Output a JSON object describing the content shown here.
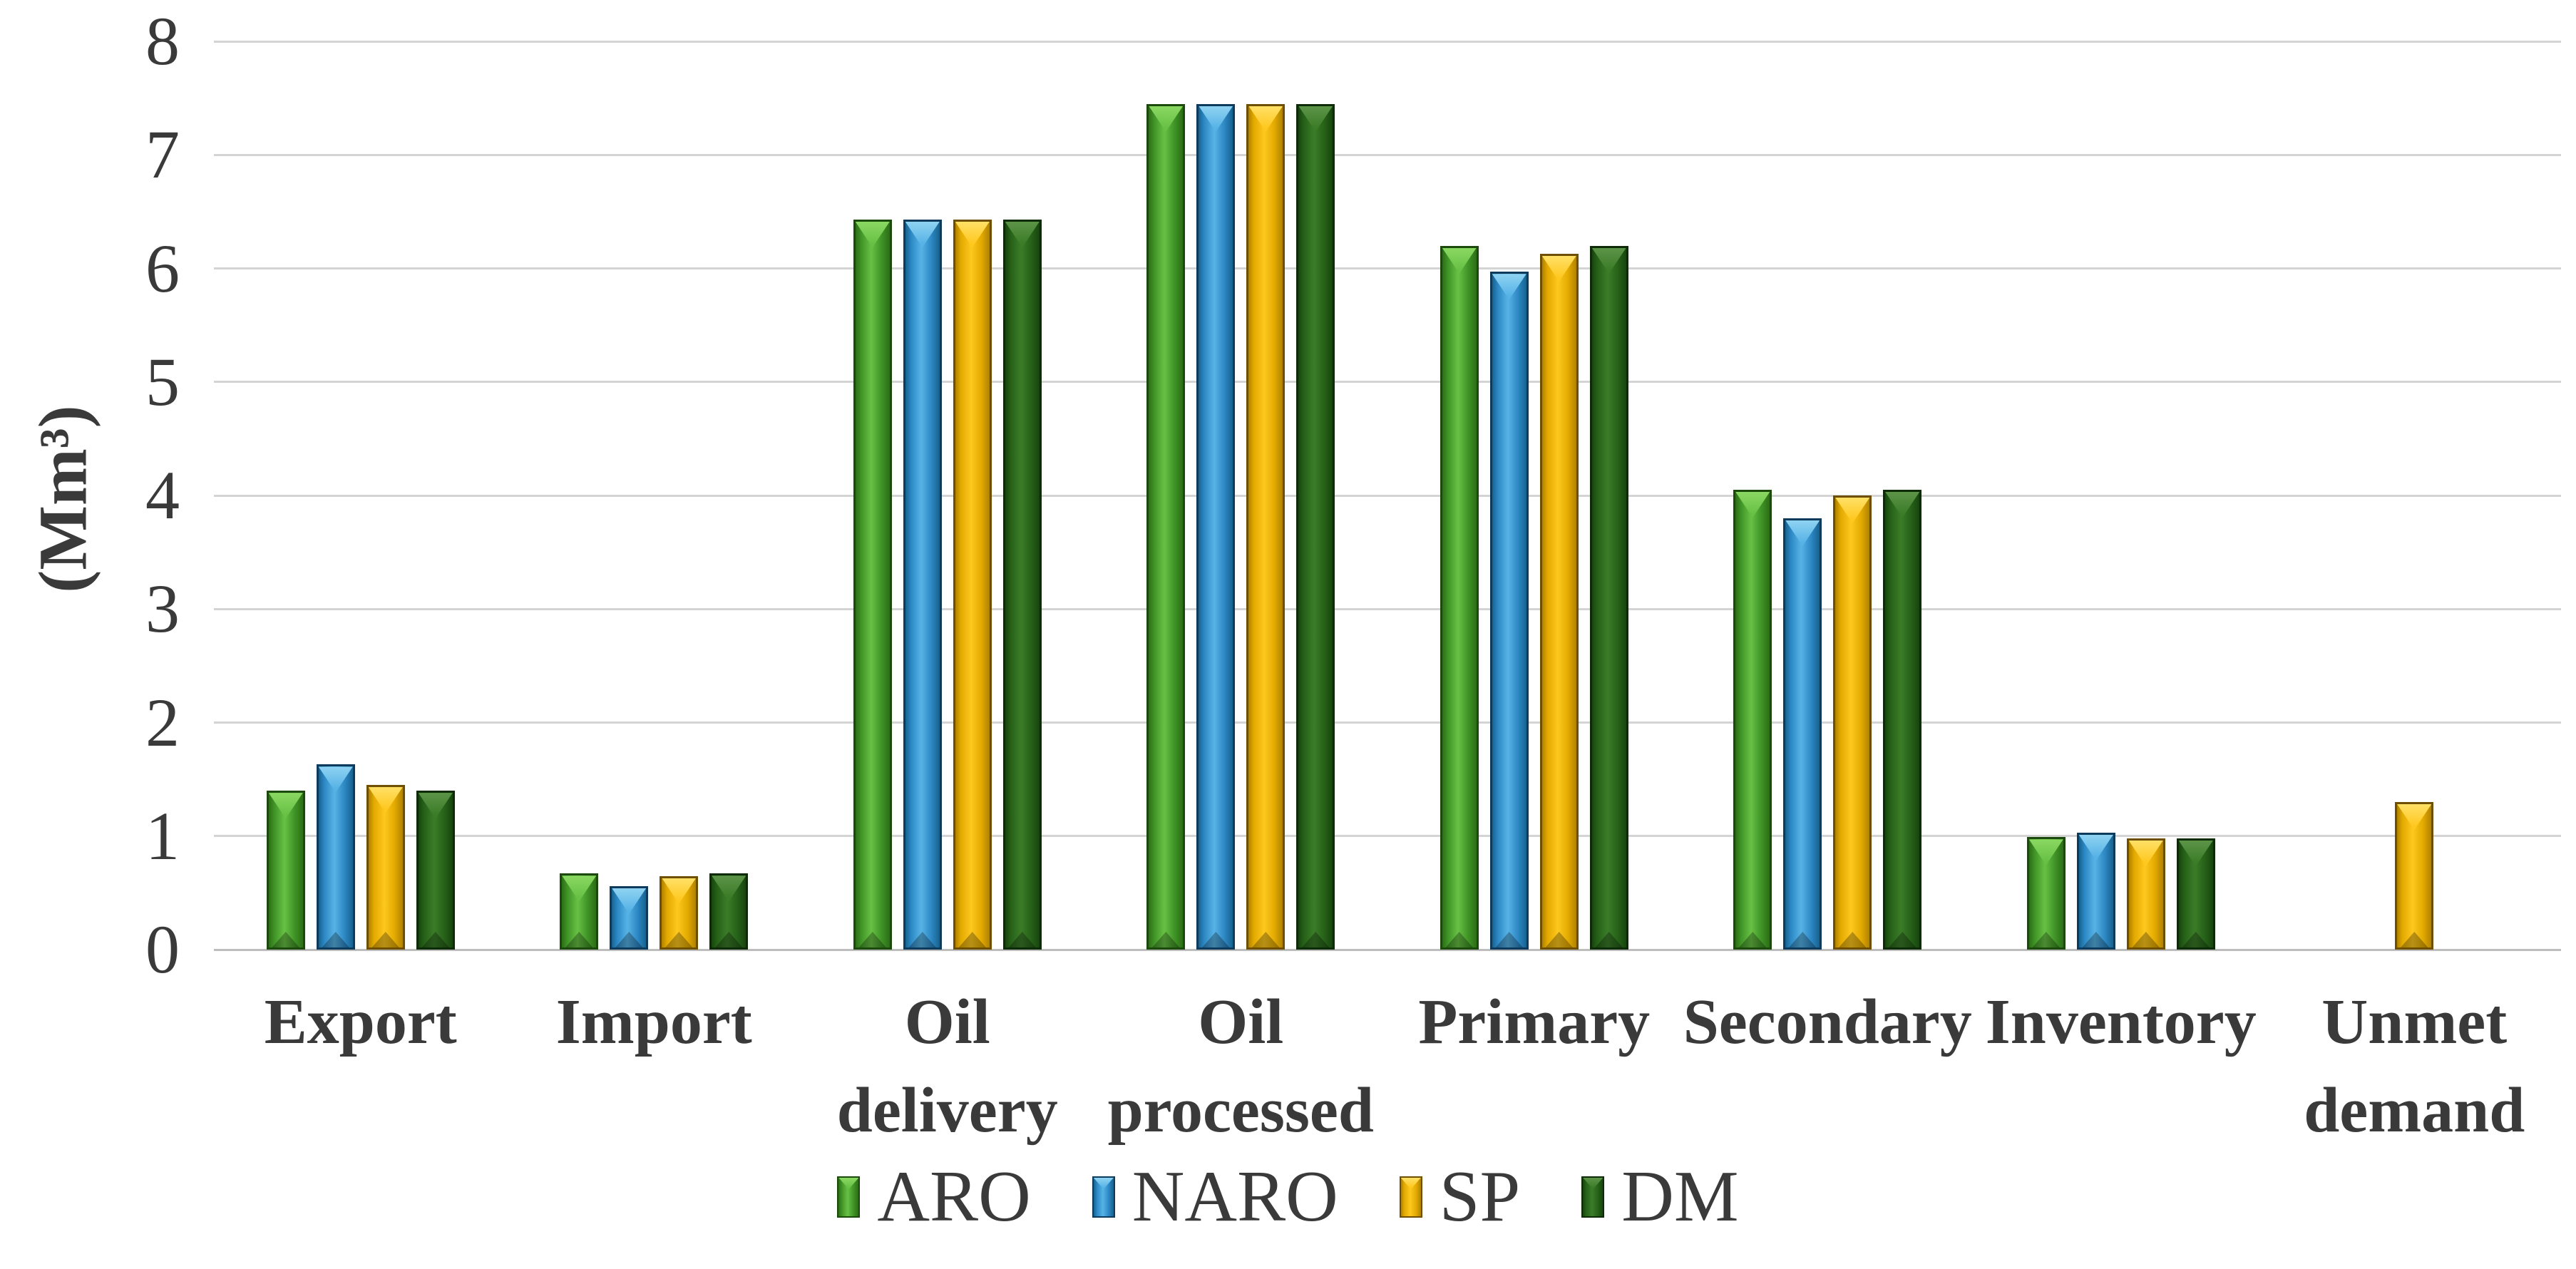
{
  "colors": {
    "text": "#3a3a3a",
    "grid": "#d4d4d4",
    "baseline": "#bdbdbd",
    "background": "#ffffff"
  },
  "y_axis": {
    "title": "(Mm³)"
  },
  "chart_data": {
    "type": "bar",
    "title": "",
    "xlabel": "",
    "ylabel": "(Mm³)",
    "ylim": [
      0,
      8
    ],
    "yticks": [
      0,
      1,
      2,
      3,
      4,
      5,
      6,
      7,
      8
    ],
    "grid": true,
    "legend_position": "bottom",
    "categories": [
      "Export",
      "Import",
      "Oil delivery",
      "Oil processed",
      "Primary",
      "Secondary",
      "Inventory",
      "Unmet demand"
    ],
    "category_lines": [
      [
        "Export"
      ],
      [
        "Import"
      ],
      [
        "Oil",
        "delivery"
      ],
      [
        "Oil",
        "processed"
      ],
      [
        "Primary"
      ],
      [
        "Secondary"
      ],
      [
        "Inventory"
      ],
      [
        "Unmet",
        "demand"
      ]
    ],
    "series": [
      {
        "name": "ARO",
        "values": [
          1.4,
          0.67,
          6.43,
          7.45,
          6.2,
          4.05,
          0.99,
          0
        ],
        "color": "#3f9326",
        "style": {
          "edge": "#2c6e16",
          "mid": "#3f9326",
          "lite": "#68c145",
          "chev": "#8ad862",
          "outline": "#1c4a0d"
        }
      },
      {
        "name": "NARO",
        "values": [
          1.63,
          0.56,
          6.43,
          7.45,
          5.97,
          3.8,
          1.03,
          0
        ],
        "color": "#2c87c3",
        "style": {
          "edge": "#17628f",
          "mid": "#2c87c3",
          "lite": "#57b3e6",
          "chev": "#8fd3f2",
          "outline": "#0e3a5c"
        }
      },
      {
        "name": "SP",
        "values": [
          1.45,
          0.65,
          6.43,
          7.45,
          6.13,
          4.0,
          0.98,
          1.3
        ],
        "color": "#e3aa00",
        "style": {
          "edge": "#b08200",
          "mid": "#e3aa00",
          "lite": "#ffc81f",
          "chev": "#ffe066",
          "outline": "#6e4f00"
        }
      },
      {
        "name": "DM",
        "values": [
          1.4,
          0.67,
          6.43,
          7.45,
          6.2,
          4.05,
          0.98,
          0
        ],
        "color": "#266118",
        "style": {
          "edge": "#17450e",
          "mid": "#266118",
          "lite": "#3b7c28",
          "chev": "#5d9448",
          "outline": "#0c2b06"
        }
      }
    ]
  }
}
